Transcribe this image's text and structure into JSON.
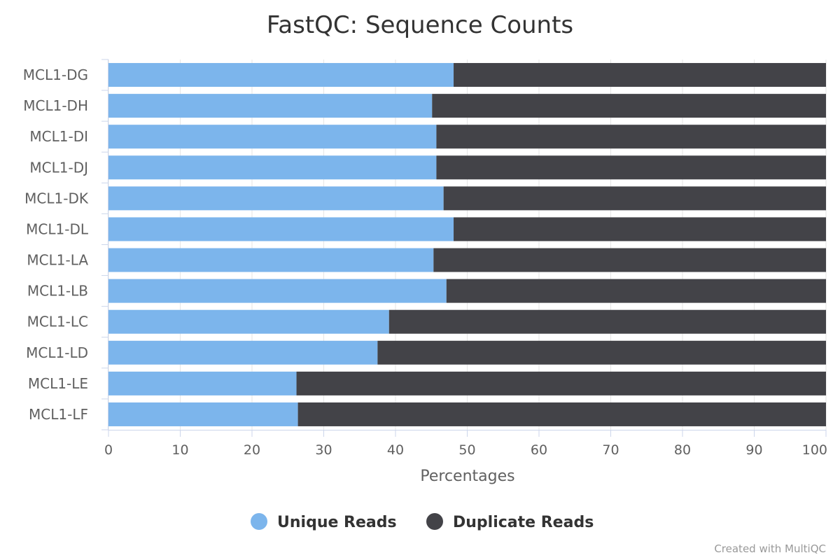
{
  "chart_data": {
    "type": "bar",
    "orientation": "horizontal",
    "stacking": "percent",
    "title": "FastQC: Sequence Counts",
    "xlabel": "Percentages",
    "ylabel": "",
    "xlim": [
      0,
      100
    ],
    "ticks": [
      "0",
      "10",
      "20",
      "30",
      "40",
      "50",
      "60",
      "70",
      "80",
      "90",
      "100"
    ],
    "categories": [
      "MCL1-DG",
      "MCL1-DH",
      "MCL1-DI",
      "MCL1-DJ",
      "MCL1-DK",
      "MCL1-DL",
      "MCL1-LA",
      "MCL1-LB",
      "MCL1-LC",
      "MCL1-LD",
      "MCL1-LE",
      "MCL1-LF"
    ],
    "series": [
      {
        "name": "Unique Reads",
        "color": "#7cb5ec",
        "values": [
          48.1,
          45.1,
          45.7,
          45.7,
          46.7,
          48.1,
          45.3,
          47.1,
          39.1,
          37.5,
          26.2,
          26.4
        ]
      },
      {
        "name": "Duplicate Reads",
        "color": "#434348",
        "values": [
          51.9,
          54.9,
          54.3,
          54.3,
          53.3,
          51.9,
          54.7,
          52.9,
          60.9,
          62.5,
          73.8,
          73.6
        ]
      }
    ],
    "legend_position": "bottom-center",
    "grid": true
  },
  "credits": "Created with MultiQC"
}
